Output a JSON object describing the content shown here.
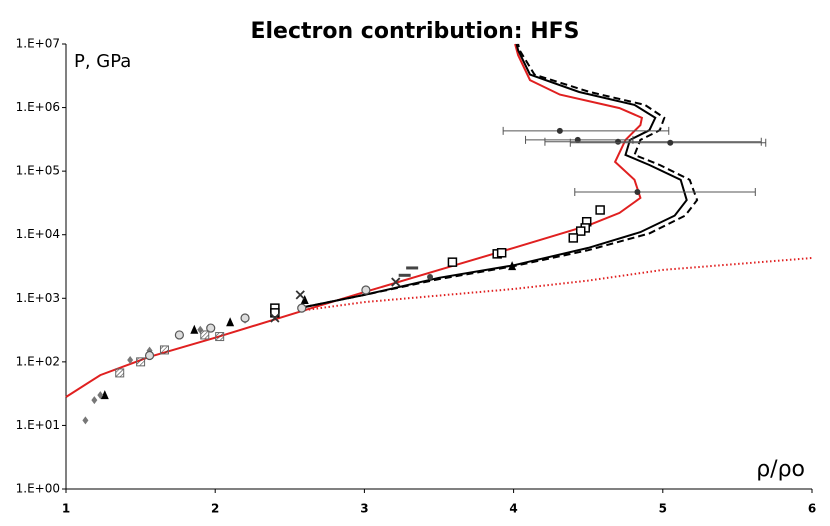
{
  "chart_data": {
    "type": "line",
    "title": "Electron contribution: HFS",
    "y_label": "P, GPa",
    "x_label": "ρ/ρo",
    "xlim": [
      1,
      6
    ],
    "xticks": [
      1,
      2,
      3,
      4,
      5,
      6
    ],
    "ylim": [
      1,
      10000000
    ],
    "yticks": [
      {
        "value": 1,
        "label": "1.E+00"
      },
      {
        "value": 10,
        "label": "1.E+01"
      },
      {
        "value": 100,
        "label": "1.E+02"
      },
      {
        "value": 1000,
        "label": "1.E+03"
      },
      {
        "value": 10000,
        "label": "1.E+04"
      },
      {
        "value": 100000,
        "label": "1.E+05"
      },
      {
        "value": 1000000,
        "label": "1.E+06"
      },
      {
        "value": 10000000,
        "label": "1.E+07"
      }
    ],
    "log_y": true,
    "grid": false,
    "series": [
      {
        "type": "line",
        "color": "#e02020",
        "dash": "solid",
        "x": [
          1.0,
          1.23,
          1.56,
          2.0,
          2.6,
          3.0,
          3.5,
          4.0,
          4.5,
          4.71,
          4.85,
          4.81,
          4.68,
          4.75,
          4.85,
          4.86,
          4.71,
          4.31,
          4.11,
          4.03,
          4.01
        ],
        "values": [
          28,
          62,
          120,
          240,
          650,
          1250,
          2800,
          6200,
          14000,
          22000,
          38000,
          73000,
          140000,
          310000,
          530000,
          690000,
          980000,
          1600000,
          2700000,
          6700000,
          10000000
        ]
      },
      {
        "type": "line",
        "color": "#000000",
        "dash": "solid",
        "x": [
          2.6,
          3.0,
          3.5,
          4.0,
          4.5,
          4.85,
          5.08,
          5.16,
          5.12,
          4.91,
          4.75,
          4.78,
          4.91,
          4.95,
          4.81,
          4.44,
          4.11,
          4.03,
          4.02
        ],
        "values": [
          730,
          1130,
          2100,
          3300,
          6200,
          11000,
          20000,
          35000,
          73000,
          125000,
          180000,
          310000,
          440000,
          690000,
          1100000,
          1760000,
          3300000,
          8000000,
          10000000
        ]
      },
      {
        "type": "line",
        "color": "#000000",
        "dash": "dashed",
        "x": [
          2.6,
          3.0,
          3.5,
          4.0,
          4.5,
          4.91,
          5.15,
          5.23,
          5.18,
          4.98,
          4.81,
          4.85,
          4.98,
          5.01,
          4.88,
          4.51,
          4.14,
          4.04,
          4.03
        ],
        "values": [
          730,
          1130,
          2000,
          3200,
          5700,
          10500,
          20000,
          35000,
          73000,
          125000,
          180000,
          310000,
          440000,
          690000,
          1100000,
          1760000,
          3300000,
          8000000,
          10000000
        ]
      },
      {
        "type": "line",
        "color": "#e02020",
        "dash": "dotted",
        "x": [
          2.6,
          3.0,
          4.0,
          4.5,
          5.0,
          6.0
        ],
        "values": [
          650,
          870,
          1400,
          1900,
          2800,
          4300
        ]
      },
      {
        "type": "scatter",
        "marker": "square",
        "color": "#000000",
        "x": [
          4.58,
          4.49,
          4.48,
          4.45,
          4.4,
          3.89,
          3.92,
          3.59,
          2.4,
          2.4
        ],
        "values": [
          24500,
          16000,
          12800,
          11400,
          8900,
          5000,
          5200,
          3700,
          700,
          590
        ]
      },
      {
        "type": "scatter",
        "marker": "triangle",
        "color": "#000000",
        "x": [
          3.99,
          2.6,
          1.86,
          1.26,
          2.1
        ],
        "values": [
          3200,
          940,
          320,
          30,
          420
        ]
      },
      {
        "type": "scatter",
        "marker": "diamond",
        "color": "#777777",
        "x": [
          1.13,
          1.19,
          1.23,
          1.43,
          1.56,
          1.9,
          2.2
        ],
        "values": [
          12,
          25,
          30,
          107,
          150,
          320,
          460
        ]
      },
      {
        "type": "scatter",
        "marker": "circle",
        "color": "#555555",
        "x": [
          3.01,
          2.58,
          2.2,
          1.97,
          1.76,
          1.56
        ],
        "values": [
          1350,
          700,
          490,
          340,
          265,
          126
        ]
      },
      {
        "type": "scatter",
        "marker": "hatched",
        "color": "#666666",
        "x": [
          1.36,
          1.5,
          1.66,
          1.93,
          2.03
        ],
        "values": [
          67,
          100,
          154,
          265,
          250
        ]
      },
      {
        "type": "scatter",
        "marker": "cross",
        "color": "#333333",
        "x": [
          2.57,
          2.4,
          3.21
        ],
        "values": [
          1130,
          490,
          1800
        ]
      },
      {
        "type": "scatter",
        "marker": "dash",
        "color": "#444444",
        "x": [
          3.32,
          3.27
        ],
        "values": [
          3000,
          2300
        ]
      },
      {
        "type": "scatter",
        "marker": "dot",
        "color": "#444444",
        "x": [
          3.44
        ],
        "values": [
          2160
        ]
      },
      {
        "type": "errorbar",
        "marker": "dot",
        "color": "#333333",
        "x": [
          4.31,
          4.43,
          4.7,
          5.05,
          4.83
        ],
        "values": [
          430000,
          310000,
          290000,
          280000,
          47000
        ],
        "xerr_minus": [
          0.38,
          0.35,
          0.49,
          0.67,
          0.42
        ],
        "xerr_plus": [
          0.73,
          0.37,
          0.96,
          0.64,
          0.79
        ]
      }
    ]
  }
}
